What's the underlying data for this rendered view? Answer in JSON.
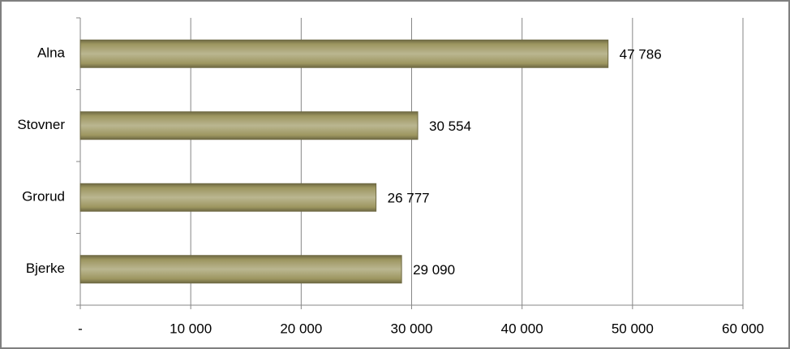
{
  "chart_data": {
    "type": "bar",
    "orientation": "horizontal",
    "categories": [
      "Alna",
      "Stovner",
      "Grorud",
      "Bjerke"
    ],
    "values": [
      47786,
      30554,
      26777,
      29090
    ],
    "value_labels": [
      "47 786",
      "30 554",
      "26 777",
      "29 090"
    ],
    "color": "#9d9660",
    "xlim": [
      0,
      60000
    ],
    "xticks": [
      {
        "value": 0,
        "label": "-"
      },
      {
        "value": 10000,
        "label": "10 000"
      },
      {
        "value": 20000,
        "label": "20 000"
      },
      {
        "value": 30000,
        "label": "30 000"
      },
      {
        "value": 40000,
        "label": "40 000"
      },
      {
        "value": 50000,
        "label": "50 000"
      },
      {
        "value": 60000,
        "label": "60 000"
      }
    ],
    "grid": true
  }
}
